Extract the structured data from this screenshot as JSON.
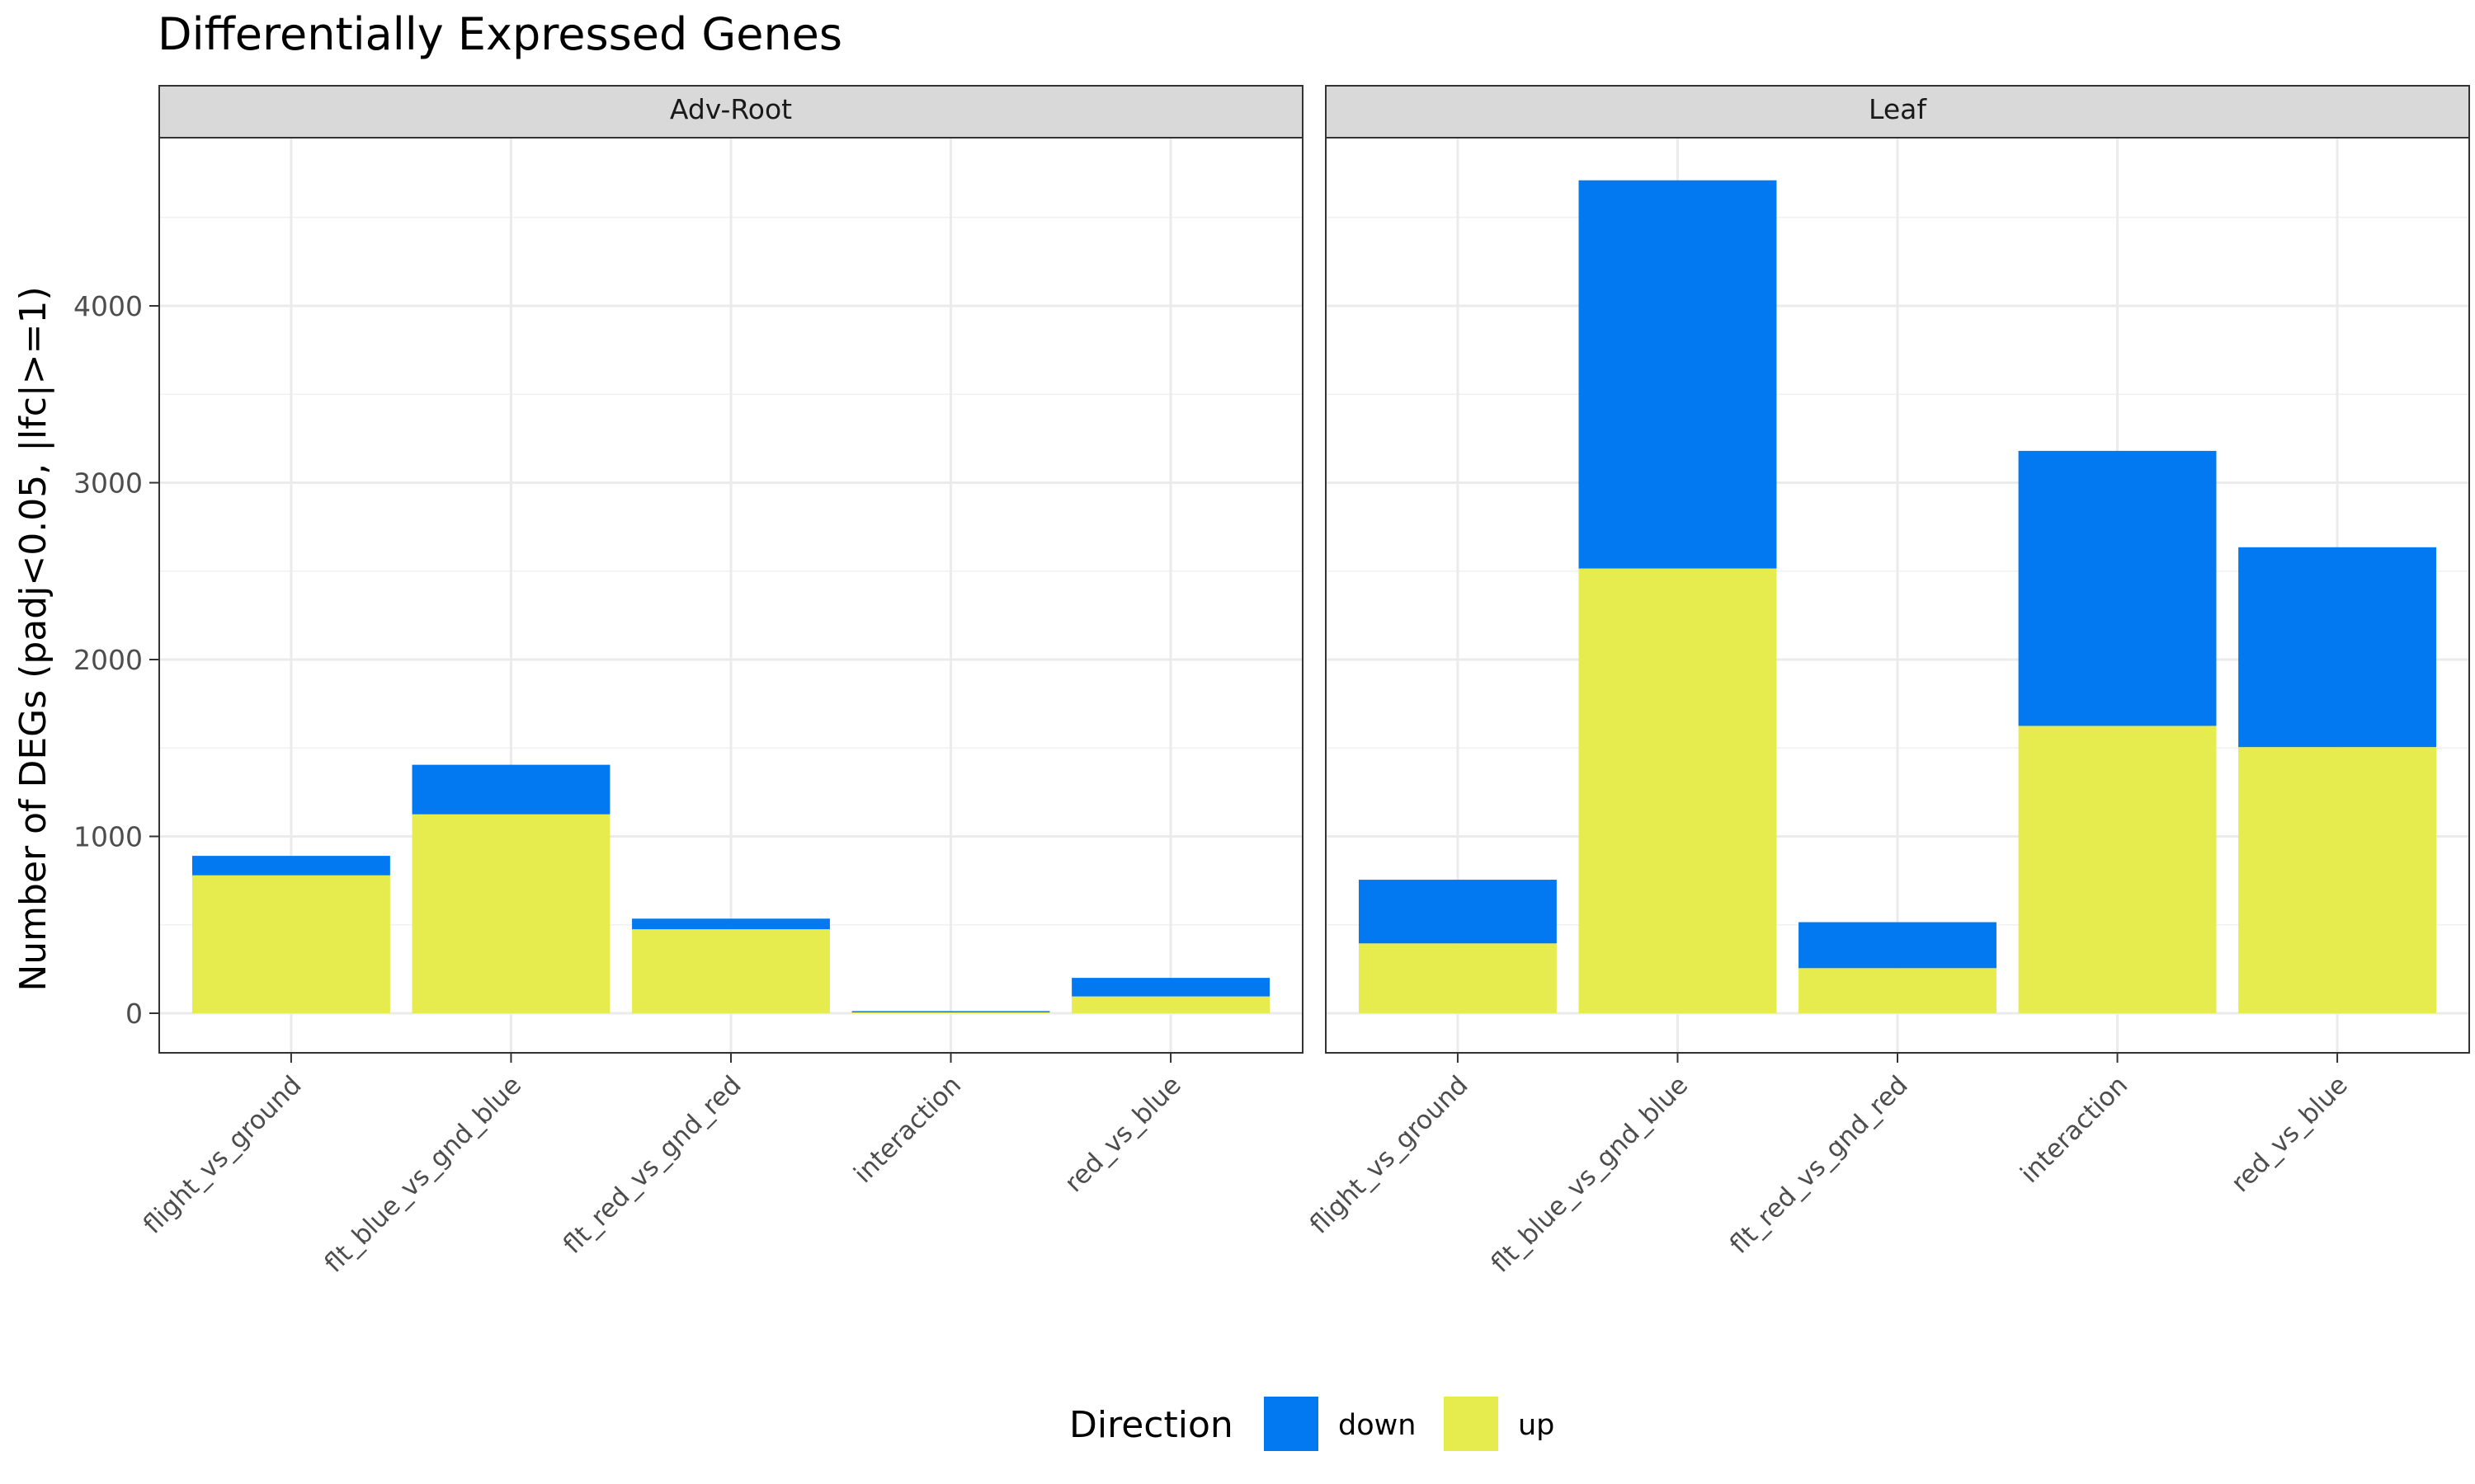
{
  "chart_data": {
    "type": "bar",
    "stacked": true,
    "title": "Differentially Expressed Genes",
    "ylabel": "Number of DEGs (padj<0.05, |lfc|>=1)",
    "xlabel": "",
    "ylim": [
      0,
      5000
    ],
    "yticks": [
      0,
      1000,
      2000,
      3000,
      4000
    ],
    "grid": true,
    "legend": {
      "title": "Direction",
      "placement": "bottom",
      "entries": [
        {
          "name": "down",
          "color": "#0379F1"
        },
        {
          "name": "up",
          "color": "#E6EC4D"
        }
      ]
    },
    "categories": [
      "flight_vs_ground",
      "flt_blue_vs_gnd_blue",
      "flt_red_vs_gnd_red",
      "interaction",
      "red_vs_blue"
    ],
    "facets": [
      {
        "name": "Adv-Root",
        "series": [
          {
            "name": "up",
            "values": [
              780,
              1125,
              475,
              5,
              95
            ]
          },
          {
            "name": "down",
            "values": [
              110,
              280,
              60,
              7,
              105
            ]
          }
        ]
      },
      {
        "name": "Leaf",
        "series": [
          {
            "name": "up",
            "values": [
              395,
              2515,
              255,
              1625,
              1505
            ]
          },
          {
            "name": "down",
            "values": [
              360,
              2195,
              260,
              1555,
              1130
            ]
          }
        ]
      }
    ]
  }
}
